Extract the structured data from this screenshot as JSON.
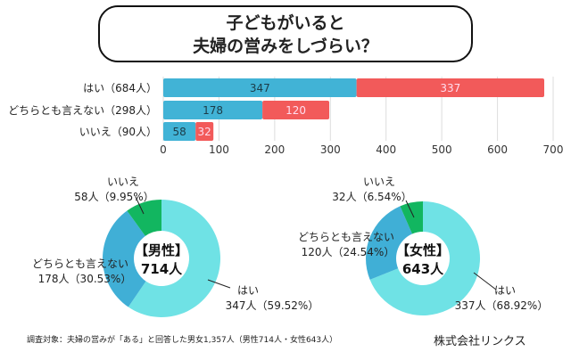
{
  "title_lines": [
    "子どもがいると",
    "夫婦の営みをしづらい？"
  ],
  "colors": {
    "male": "#41b3d6",
    "female": "#f25a5a",
    "yes": "#6fe2e5",
    "neutral": "#40afd6",
    "no": "#12b660"
  },
  "chart_data": [
    {
      "type": "bar",
      "orientation": "horizontal",
      "stacked": true,
      "categories": [
        "はい（684人）",
        "どちらとも言えない（298人）",
        "いいえ（90人）"
      ],
      "series": [
        {
          "values": [
            347,
            178,
            58
          ],
          "color": "#41b3d6"
        },
        {
          "values": [
            337,
            120,
            32
          ],
          "color": "#f25a5a"
        }
      ],
      "xlim": [
        0,
        700
      ],
      "xticks": [
        0,
        100,
        200,
        300,
        400,
        500,
        600,
        700
      ],
      "grid": true
    },
    {
      "type": "pie",
      "donut": true,
      "center_label": [
        "【男性】",
        "714人"
      ],
      "slices": [
        {
          "label": "はい",
          "value": 347,
          "text": "347人（59.52%）",
          "color": "#6fe2e5"
        },
        {
          "label": "どちらとも言えない",
          "value": 178,
          "text": "178人（30.53%）",
          "color": "#40afd6"
        },
        {
          "label": "いいえ",
          "value": 58,
          "text": "58人（9.95%）",
          "color": "#12b660"
        }
      ]
    },
    {
      "type": "pie",
      "donut": true,
      "center_label": [
        "【女性】",
        "643人"
      ],
      "slices": [
        {
          "label": "はい",
          "value": 337,
          "text": "337人（68.92%）",
          "color": "#6fe2e5"
        },
        {
          "label": "どちらとも言えない",
          "value": 120,
          "text": "120人（24.54%）",
          "color": "#40afd6"
        },
        {
          "label": "いいえ",
          "value": 32,
          "text": "32人（6.54%）",
          "color": "#12b660"
        }
      ]
    }
  ],
  "footer": "調査対象：夫婦の営みが「ある」と回答した男女1,357人（男性714人・女性643人）",
  "company": "株式会社リンクス"
}
